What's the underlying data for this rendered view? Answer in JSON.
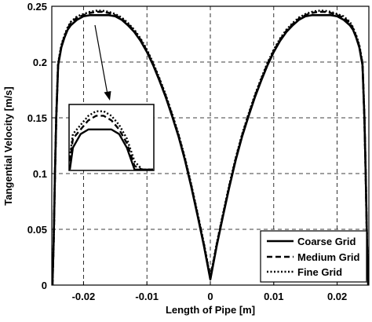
{
  "chart_data": {
    "type": "line",
    "title": "",
    "xlabel": "Length of Pipe  [m]",
    "ylabel": "Tangential Velocity  [m/s]",
    "xlim": [
      -0.025,
      0.025
    ],
    "ylim": [
      0,
      0.25
    ],
    "x_ticks": [
      -0.02,
      -0.01,
      0,
      0.01,
      0.02
    ],
    "x_tick_labels": [
      "-0.02",
      "-0.01",
      "0",
      "0.01",
      "0.02"
    ],
    "y_ticks": [
      0,
      0.05,
      0.1,
      0.15,
      0.2,
      0.25
    ],
    "y_tick_labels": [
      "0",
      "0.05",
      "0.1",
      "0.15",
      "0.2",
      "0.25"
    ],
    "grid": true,
    "legend_position": "bottom-right",
    "series": [
      {
        "name": "Coarse Grid",
        "style": "solid",
        "x": [
          -0.0249,
          -0.0247,
          -0.0245,
          -0.0243,
          -0.024,
          -0.0235,
          -0.023,
          -0.0225,
          -0.022,
          -0.021,
          -0.02,
          -0.019,
          -0.018,
          -0.017,
          -0.016,
          -0.015,
          -0.014,
          -0.013,
          -0.012,
          -0.011,
          -0.01,
          -0.009,
          -0.008,
          -0.007,
          -0.006,
          -0.005,
          -0.004,
          -0.003,
          -0.002,
          -0.001,
          -0.0005,
          0,
          0.0005,
          0.001,
          0.002,
          0.003,
          0.004,
          0.005,
          0.006,
          0.007,
          0.008,
          0.009,
          0.01,
          0.011,
          0.012,
          0.013,
          0.014,
          0.015,
          0.016,
          0.017,
          0.018,
          0.019,
          0.02,
          0.021,
          0.022,
          0.0225,
          0.023,
          0.0235,
          0.024,
          0.0243,
          0.0245,
          0.0247,
          0.0249
        ],
        "y": [
          0.0,
          0.04,
          0.1,
          0.15,
          0.197,
          0.213,
          0.222,
          0.229,
          0.233,
          0.238,
          0.241,
          0.242,
          0.242,
          0.242,
          0.242,
          0.241,
          0.238,
          0.233,
          0.227,
          0.219,
          0.209,
          0.197,
          0.183,
          0.168,
          0.151,
          0.133,
          0.112,
          0.088,
          0.062,
          0.035,
          0.02,
          0.005,
          0.02,
          0.035,
          0.062,
          0.088,
          0.112,
          0.133,
          0.151,
          0.168,
          0.183,
          0.197,
          0.209,
          0.219,
          0.227,
          0.233,
          0.238,
          0.241,
          0.242,
          0.242,
          0.242,
          0.242,
          0.241,
          0.238,
          0.233,
          0.229,
          0.222,
          0.213,
          0.197,
          0.15,
          0.1,
          0.04,
          0.0
        ]
      },
      {
        "name": "Medium Grid",
        "style": "dashed",
        "x": [
          -0.0249,
          -0.0247,
          -0.0245,
          -0.0243,
          -0.024,
          -0.0235,
          -0.023,
          -0.0225,
          -0.022,
          -0.021,
          -0.02,
          -0.019,
          -0.018,
          -0.017,
          -0.016,
          -0.015,
          -0.014,
          -0.013,
          -0.012,
          -0.011,
          -0.01,
          -0.009,
          -0.008,
          -0.007,
          -0.006,
          -0.005,
          -0.004,
          -0.003,
          -0.002,
          -0.001,
          -0.0005,
          0,
          0.0005,
          0.001,
          0.002,
          0.003,
          0.004,
          0.005,
          0.006,
          0.007,
          0.008,
          0.009,
          0.01,
          0.011,
          0.012,
          0.013,
          0.014,
          0.015,
          0.016,
          0.017,
          0.018,
          0.019,
          0.02,
          0.021,
          0.022,
          0.0225,
          0.023,
          0.0235,
          0.024,
          0.0243,
          0.0245,
          0.0247,
          0.0249
        ],
        "y": [
          0.0,
          0.04,
          0.1,
          0.15,
          0.198,
          0.214,
          0.223,
          0.23,
          0.235,
          0.24,
          0.242,
          0.244,
          0.245,
          0.245,
          0.244,
          0.242,
          0.239,
          0.234,
          0.228,
          0.22,
          0.21,
          0.198,
          0.184,
          0.169,
          0.152,
          0.134,
          0.113,
          0.089,
          0.063,
          0.036,
          0.021,
          0.006,
          0.021,
          0.036,
          0.063,
          0.089,
          0.113,
          0.134,
          0.152,
          0.169,
          0.184,
          0.198,
          0.21,
          0.22,
          0.228,
          0.234,
          0.239,
          0.242,
          0.244,
          0.245,
          0.245,
          0.244,
          0.242,
          0.24,
          0.235,
          0.23,
          0.223,
          0.214,
          0.198,
          0.15,
          0.1,
          0.04,
          0.0
        ]
      },
      {
        "name": "Fine Grid",
        "style": "dotted",
        "x": [
          -0.0249,
          -0.0247,
          -0.0245,
          -0.0243,
          -0.024,
          -0.0235,
          -0.023,
          -0.0225,
          -0.022,
          -0.021,
          -0.02,
          -0.019,
          -0.018,
          -0.017,
          -0.016,
          -0.015,
          -0.014,
          -0.013,
          -0.012,
          -0.011,
          -0.01,
          -0.009,
          -0.008,
          -0.007,
          -0.006,
          -0.005,
          -0.004,
          -0.003,
          -0.002,
          -0.001,
          -0.0005,
          0,
          0.0005,
          0.001,
          0.002,
          0.003,
          0.004,
          0.005,
          0.006,
          0.007,
          0.008,
          0.009,
          0.01,
          0.011,
          0.012,
          0.013,
          0.014,
          0.015,
          0.016,
          0.017,
          0.018,
          0.019,
          0.02,
          0.021,
          0.022,
          0.0225,
          0.023,
          0.0235,
          0.024,
          0.0243,
          0.0245,
          0.0247,
          0.0249
        ],
        "y": [
          0.0,
          0.04,
          0.1,
          0.15,
          0.199,
          0.215,
          0.224,
          0.231,
          0.236,
          0.241,
          0.243,
          0.245,
          0.246,
          0.246,
          0.245,
          0.243,
          0.24,
          0.235,
          0.229,
          0.221,
          0.211,
          0.199,
          0.185,
          0.17,
          0.153,
          0.135,
          0.114,
          0.09,
          0.064,
          0.037,
          0.022,
          0.007,
          0.022,
          0.037,
          0.064,
          0.09,
          0.114,
          0.135,
          0.153,
          0.17,
          0.185,
          0.199,
          0.211,
          0.221,
          0.229,
          0.235,
          0.24,
          0.243,
          0.245,
          0.246,
          0.246,
          0.245,
          0.243,
          0.241,
          0.236,
          0.231,
          0.224,
          0.215,
          0.199,
          0.15,
          0.1,
          0.04,
          0.0
        ]
      }
    ],
    "inset": {
      "description_of_zoom": "magnified view of the left peak",
      "xlim": [
        -0.0215,
        -0.0105
      ],
      "ylim": [
        0.233,
        0.2475
      ],
      "source_point": [
        -0.0195,
        0.244
      ]
    }
  }
}
